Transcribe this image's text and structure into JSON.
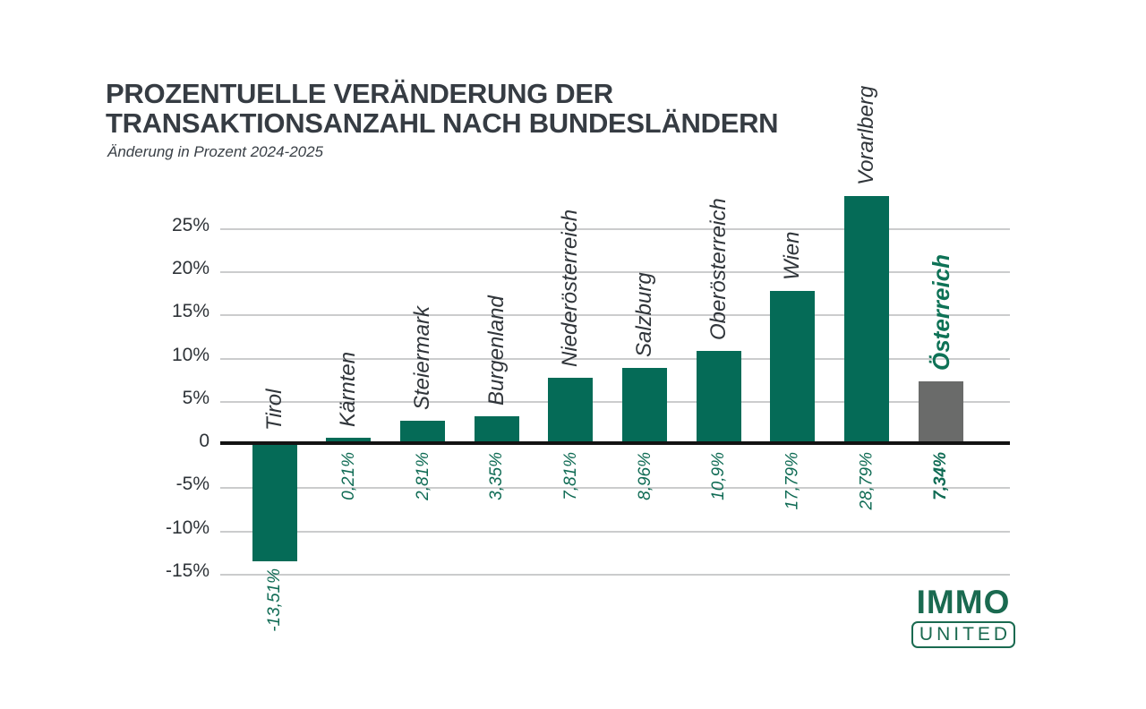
{
  "page": {
    "background": "#FFFFFF"
  },
  "header": {
    "title_line1": "PROZENTUELLE VERÄNDERUNG DER",
    "title_line2": "TRANSAKTIONSANZAHL NACH BUNDESLÄNDERN",
    "subtitle": "Änderung in Prozent 2024-2025"
  },
  "logo": {
    "top": "IMMO",
    "bottom": "UNITED"
  },
  "chart_data": {
    "type": "bar",
    "title": "PROZENTUELLE VERÄNDERUNG DER TRANSAKTIONSANZAHL NACH BUNDESLÄNDERN",
    "subtitle": "Änderung in Prozent 2024-2025",
    "xlabel": "",
    "ylabel": "",
    "unit": "%",
    "ylim": [
      -15,
      29
    ],
    "grid": true,
    "legend": false,
    "yticks": [
      {
        "value": 25,
        "label": "25%"
      },
      {
        "value": 20,
        "label": "20%"
      },
      {
        "value": 15,
        "label": "15%"
      },
      {
        "value": 10,
        "label": "10%"
      },
      {
        "value": 5,
        "label": "5%"
      },
      {
        "value": 0,
        "label": "0"
      },
      {
        "value": -5,
        "label": "-5%"
      },
      {
        "value": -10,
        "label": "-10%"
      },
      {
        "value": -15,
        "label": "-15%"
      }
    ],
    "categories": [
      "Tirol",
      "Kärnten",
      "Steiermark",
      "Burgenland",
      "Niederösterreich",
      "Salzburg",
      "Oberösterreich",
      "Wien",
      "Vorarlberg",
      "Österreich"
    ],
    "values": [
      -13.51,
      0.21,
      2.81,
      3.35,
      7.81,
      8.96,
      10.9,
      17.79,
      28.79,
      7.34
    ],
    "bars": [
      {
        "category": "Tirol",
        "value": -13.51,
        "value_label": "-13,51%",
        "bar_color": "#056B57",
        "category_color": "#30353A",
        "emphasis": false
      },
      {
        "category": "Kärnten",
        "value": 0.21,
        "value_label": "0,21%",
        "bar_color": "#056B57",
        "category_color": "#30353A",
        "emphasis": false
      },
      {
        "category": "Steiermark",
        "value": 2.81,
        "value_label": "2,81%",
        "bar_color": "#056B57",
        "category_color": "#30353A",
        "emphasis": false
      },
      {
        "category": "Burgenland",
        "value": 3.35,
        "value_label": "3,35%",
        "bar_color": "#056B57",
        "category_color": "#30353A",
        "emphasis": false
      },
      {
        "category": "Niederösterreich",
        "value": 7.81,
        "value_label": "7,81%",
        "bar_color": "#056B57",
        "category_color": "#30353A",
        "emphasis": false
      },
      {
        "category": "Salzburg",
        "value": 8.96,
        "value_label": "8,96%",
        "bar_color": "#056B57",
        "category_color": "#30353A",
        "emphasis": false
      },
      {
        "category": "Oberösterreich",
        "value": 10.9,
        "value_label": "10,9%",
        "bar_color": "#056B57",
        "category_color": "#30353A",
        "emphasis": false
      },
      {
        "category": "Wien",
        "value": 17.79,
        "value_label": "17,79%",
        "bar_color": "#056B57",
        "category_color": "#30353A",
        "emphasis": false
      },
      {
        "category": "Vorarlberg",
        "value": 28.79,
        "value_label": "28,79%",
        "bar_color": "#056B57",
        "category_color": "#30353A",
        "emphasis": false
      },
      {
        "category": "Österreich",
        "value": 7.34,
        "value_label": "7,34%",
        "bar_color": "#6A6B6A",
        "category_color": "#0E7256",
        "emphasis": true
      }
    ],
    "colors": {
      "bar_green": "#056B57",
      "bar_gray": "#6A6B6A",
      "value_text_green": "#0F6B54",
      "axis_text": "#2E3338",
      "gridline": "#CBCCCD",
      "zero_line": "#131313",
      "title_text": "#363C43",
      "logo_green": "#1A6A50"
    }
  }
}
